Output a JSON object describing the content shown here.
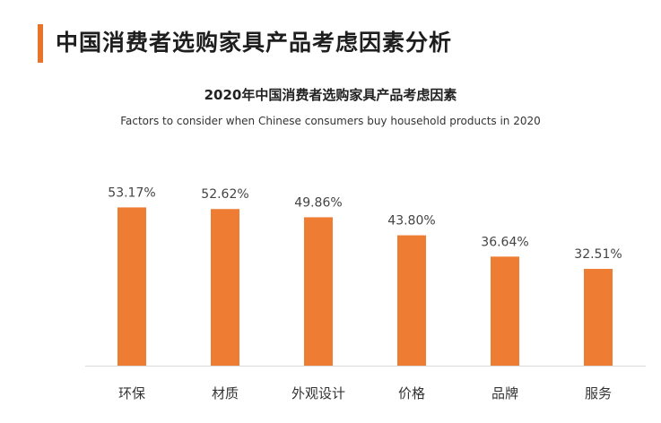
{
  "header": {
    "title": "中国消费者选购家具产品考虑因素分析"
  },
  "colors": {
    "accent": "#e8742c",
    "bar": "#ee7c32",
    "axis": "#d9d9d9"
  },
  "chart_data": {
    "type": "bar",
    "title": "2020年中国消费者选购家具产品考虑因素",
    "subtitle": "Factors to consider when Chinese consumers buy household products in 2020",
    "categories": [
      "环保",
      "材质",
      "外观设计",
      "价格",
      "品牌",
      "服务"
    ],
    "values": [
      53.17,
      52.62,
      49.86,
      43.8,
      36.64,
      32.51
    ],
    "value_labels": [
      "53.17%",
      "52.62%",
      "49.86%",
      "43.80%",
      "36.64%",
      "32.51%"
    ],
    "xlabel": "",
    "ylabel": "",
    "ylim": [
      0,
      60
    ],
    "grid": false,
    "legend": "none"
  }
}
